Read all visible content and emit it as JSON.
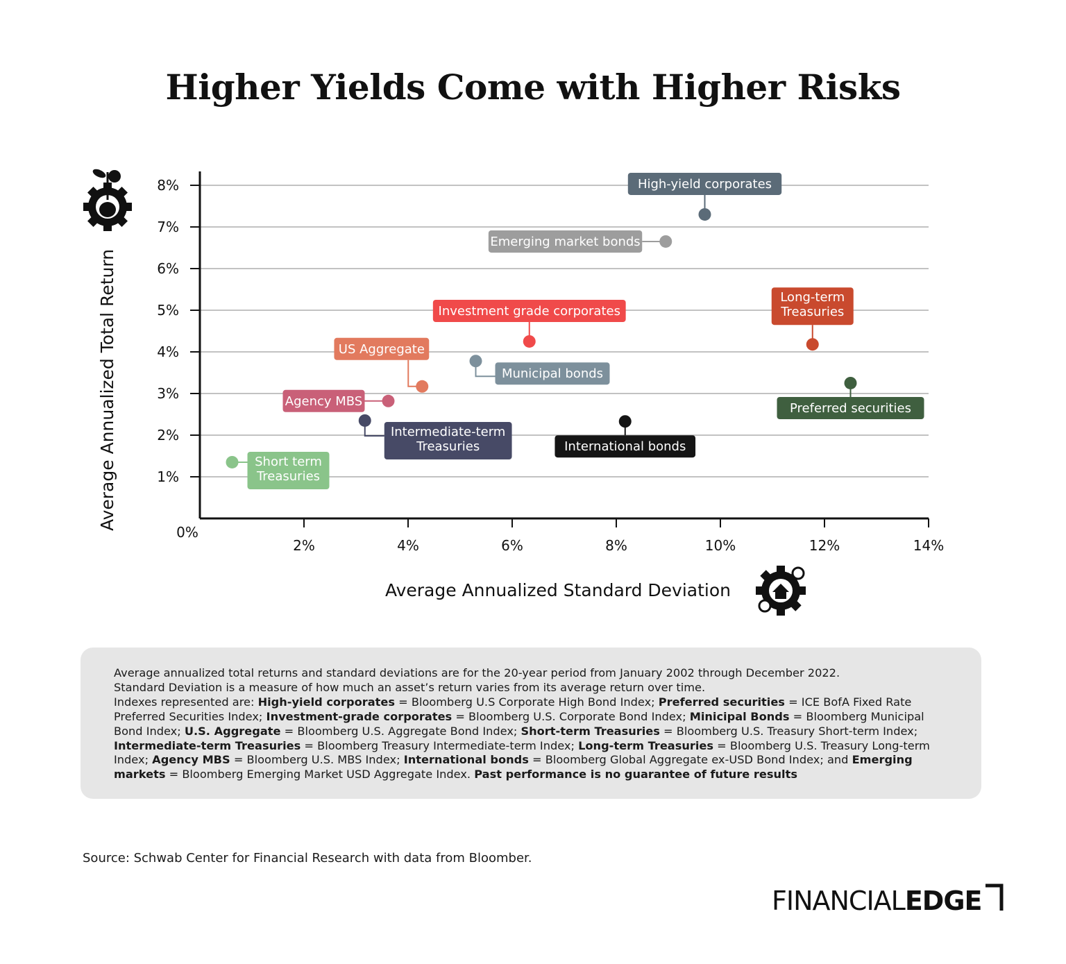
{
  "title": "Higher Yields Come with Higher Risks",
  "chart_data": {
    "type": "scatter",
    "xlabel": "Average Annualized Standard Deviation",
    "ylabel": "Average Annualized Total Return",
    "xlim": [
      0,
      14
    ],
    "ylim": [
      0,
      8.333
    ],
    "x_ticks": [
      {
        "value": 2,
        "label": "2%"
      },
      {
        "value": 4,
        "label": "4%"
      },
      {
        "value": 6,
        "label": "6%"
      },
      {
        "value": 8,
        "label": "8%"
      },
      {
        "value": 10,
        "label": "10%"
      },
      {
        "value": 12,
        "label": "12%"
      },
      {
        "value": 14,
        "label": "14%"
      }
    ],
    "y_ticks": [
      {
        "value": 1,
        "label": "1%"
      },
      {
        "value": 2,
        "label": "2%"
      },
      {
        "value": 3,
        "label": "3%"
      },
      {
        "value": 4,
        "label": "4%"
      },
      {
        "value": 5,
        "label": "5%"
      },
      {
        "value": 6,
        "label": "6%"
      },
      {
        "value": 7,
        "label": "7%"
      },
      {
        "value": 8,
        "label": "8%"
      }
    ],
    "origin_label": "0%",
    "grid": "horizontal",
    "points": [
      {
        "name": "High-yield corporates",
        "x": 9.7,
        "y": 7.3,
        "color": "#5b6b78",
        "label_side": "above"
      },
      {
        "name": "Emerging market bonds",
        "x": 8.95,
        "y": 6.65,
        "color": "#9d9d9d",
        "label_side": "left"
      },
      {
        "name": "Investment grade corporates",
        "x": 6.33,
        "y": 4.25,
        "color": "#f04a4a",
        "label_side": "above"
      },
      {
        "name": "Long-term Treasuries",
        "x": 11.77,
        "y": 4.18,
        "color": "#c94a2e",
        "label_side": "above"
      },
      {
        "name": "US Aggregate",
        "x": 4.27,
        "y": 3.17,
        "color": "#e27a5e",
        "label_side": "above-left"
      },
      {
        "name": "Municipal bonds",
        "x": 5.3,
        "y": 3.78,
        "color": "#7d909c",
        "label_side": "below-right"
      },
      {
        "name": "Agency MBS",
        "x": 3.62,
        "y": 2.82,
        "color": "#c96078",
        "label_side": "left"
      },
      {
        "name": "Preferred securities",
        "x": 12.5,
        "y": 3.25,
        "color": "#3f5f3f",
        "label_side": "below"
      },
      {
        "name": "Intermediate-term Treasuries",
        "x": 3.17,
        "y": 2.35,
        "color": "#474a66",
        "label_side": "below-right"
      },
      {
        "name": "International bonds",
        "x": 8.17,
        "y": 2.33,
        "color": "#151515",
        "label_side": "below"
      },
      {
        "name": "Short term Treasuries",
        "x": 0.62,
        "y": 1.35,
        "color": "#8ac48a",
        "label_side": "right"
      }
    ]
  },
  "notes": {
    "line1": "Average annualized total returns and standard deviations are for the 20-year period from January 2002 through December 2022.",
    "line2": "Standard Deviation is a measure of how much an asset’s return varies from its average return over time.",
    "indexes_intro": "Indexes represented are: ",
    "entries": [
      {
        "name": "High-yield corporates",
        "index": " = Bloomberg U.S Corporate High Bond Index; "
      },
      {
        "name": "Preferred securities",
        "index": " = ICE BofA Fixed Rate Preferred Securities Index; "
      },
      {
        "name": "Investment-grade corporates",
        "index": " = Bloomberg U.S. Corporate Bond Index; "
      },
      {
        "name": "Minicipal Bonds",
        "index": " = Bloomberg Municipal Bond Index; "
      },
      {
        "name": "U.S. Aggregate",
        "index": " = Bloomberg U.S. Aggregate Bond Index; "
      },
      {
        "name": "Short-term Treasuries",
        "index": " = Bloomberg U.S. Treasury Short-term Index; "
      },
      {
        "name": "Intermediate-term Treasuries",
        "index": " = Bloomberg Treasury Intermediate-term Index; "
      },
      {
        "name": "Long-term Treasuries",
        "index": " = Bloomberg U.S. Treasury Long-term Index; "
      },
      {
        "name": "Agency MBS",
        "index": " = Bloomberg U.S. MBS Index; "
      },
      {
        "name": "International bonds",
        "index": " = Bloomberg Global Aggregate ex-USD Bond Index; "
      }
    ],
    "last_prefix": "and ",
    "last_name": "Emerging markets",
    "last_index": " = Bloomberg Emerging Market USD Aggregate Index. ",
    "disclaimer": "Past performance is no guarantee of future results"
  },
  "source": "Source: Schwab Center for Financial Research with data from Bloomber.",
  "brand": {
    "part1": "FINANCIAL",
    "part2": "EDGE"
  },
  "icons": {
    "y_axis_icon": "money-plant-gear-icon",
    "x_axis_icon": "house-gear-icon"
  }
}
